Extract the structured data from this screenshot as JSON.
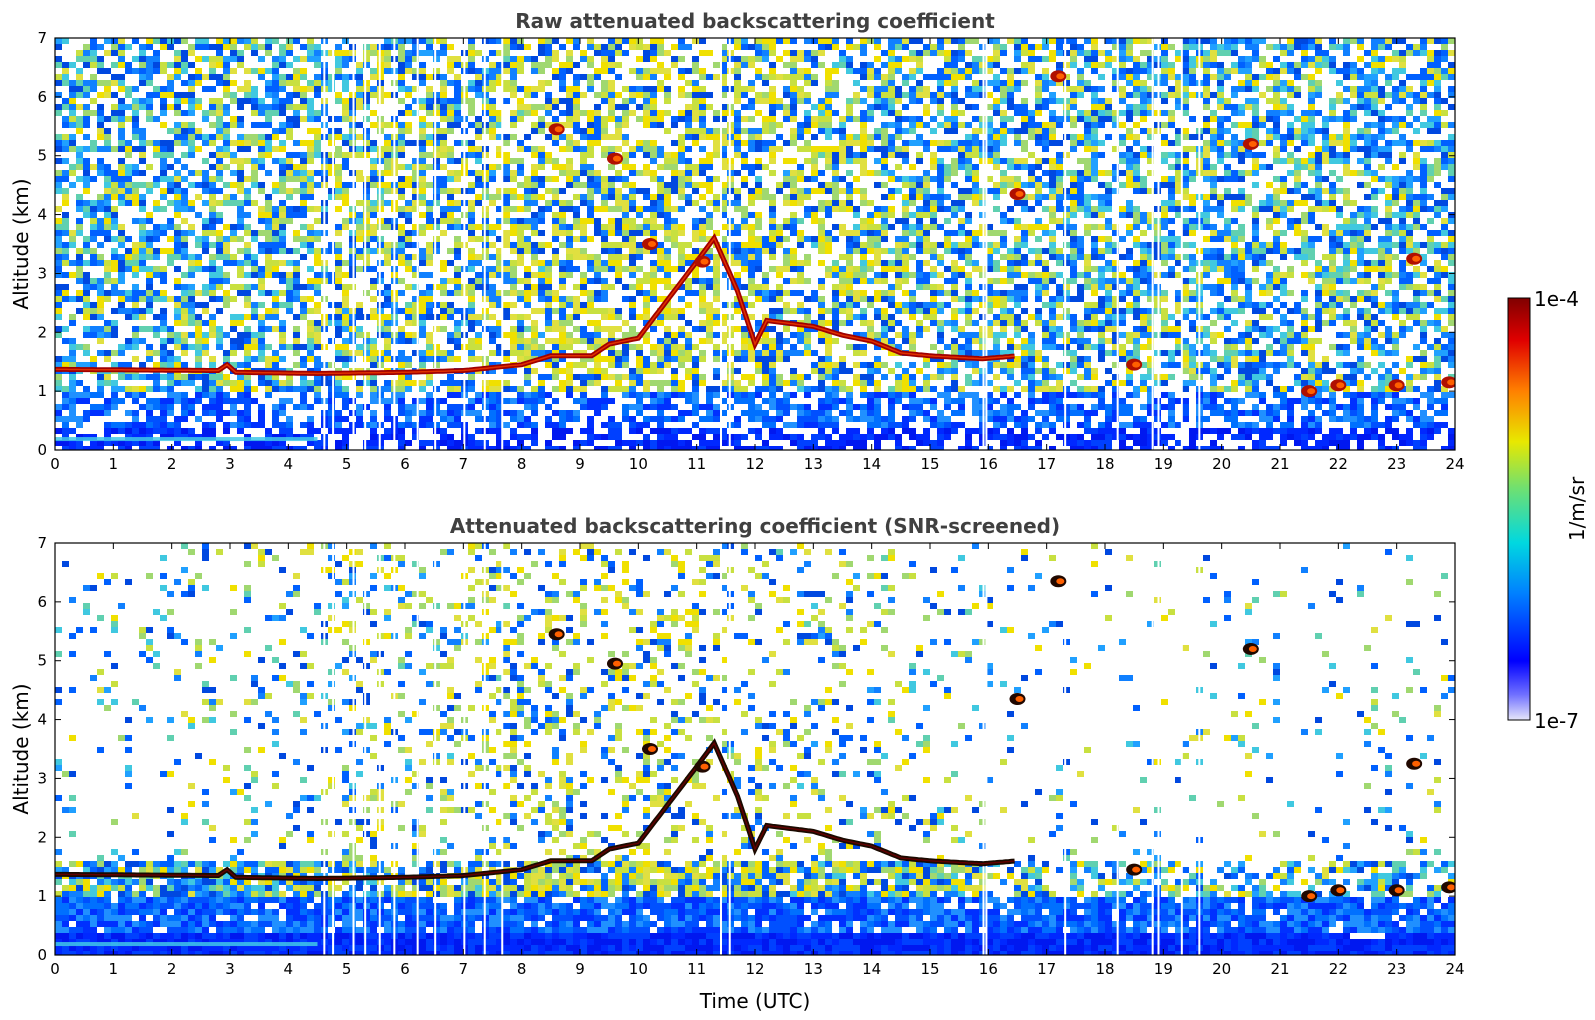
{
  "chart_data": [
    {
      "type": "heatmap",
      "title": "Raw attenuated backscattering coefficient",
      "xlabel": "",
      "ylabel": "Altitude (km)",
      "xlim": [
        0,
        24
      ],
      "ylim": [
        0,
        7
      ],
      "xticks": [
        "0",
        "1",
        "2",
        "3",
        "4",
        "5",
        "6",
        "7",
        "8",
        "9",
        "10",
        "11",
        "12",
        "13",
        "14",
        "15",
        "16",
        "17",
        "18",
        "19",
        "20",
        "21",
        "22",
        "23",
        "24"
      ],
      "yticks": [
        "0",
        "1",
        "2",
        "3",
        "4",
        "5",
        "6",
        "7"
      ],
      "screened": false,
      "layer_height_km": [
        [
          0,
          1.37
        ],
        [
          2.8,
          1.35
        ],
        [
          2.95,
          1.45
        ],
        [
          3.1,
          1.32
        ],
        [
          4.5,
          1.3
        ],
        [
          6,
          1.32
        ],
        [
          7,
          1.35
        ],
        [
          8,
          1.45
        ],
        [
          8.5,
          1.6
        ],
        [
          9.2,
          1.6
        ],
        [
          9.5,
          1.8
        ],
        [
          10,
          1.9
        ],
        [
          11,
          3.2
        ],
        [
          11.3,
          3.6
        ],
        [
          11.7,
          2.7
        ],
        [
          12,
          1.8
        ],
        [
          12.2,
          2.2
        ],
        [
          13,
          2.1
        ],
        [
          13.5,
          1.95
        ],
        [
          14,
          1.85
        ],
        [
          14.5,
          1.65
        ],
        [
          15,
          1.6
        ],
        [
          15.9,
          1.55
        ],
        [
          16.5,
          1.6
        ]
      ],
      "clouds": [
        {
          "t": 8.6,
          "h": 5.45
        },
        {
          "t": 9.6,
          "h": 4.95
        },
        {
          "t": 10.2,
          "h": 3.5
        },
        {
          "t": 11.1,
          "h": 3.2
        },
        {
          "t": 16.5,
          "h": 4.35
        },
        {
          "t": 17.2,
          "h": 6.35
        },
        {
          "t": 20.5,
          "h": 5.2
        },
        {
          "t": 18.5,
          "h": 1.45
        },
        {
          "t": 21.5,
          "h": 1.0
        },
        {
          "t": 22,
          "h": 1.1
        },
        {
          "t": 23.0,
          "h": 1.1
        },
        {
          "t": 23.9,
          "h": 1.15
        },
        {
          "t": 23.3,
          "h": 3.25
        }
      ]
    },
    {
      "type": "heatmap",
      "title": "Attenuated backscattering coefficient (SNR-screened)",
      "xlabel": "Time (UTC)",
      "ylabel": "Altitude (km)",
      "xlim": [
        0,
        24
      ],
      "ylim": [
        0,
        7
      ],
      "xticks": [
        "0",
        "1",
        "2",
        "3",
        "4",
        "5",
        "6",
        "7",
        "8",
        "9",
        "10",
        "11",
        "12",
        "13",
        "14",
        "15",
        "16",
        "17",
        "18",
        "19",
        "20",
        "21",
        "22",
        "23",
        "24"
      ],
      "yticks": [
        "0",
        "1",
        "2",
        "3",
        "4",
        "5",
        "6",
        "7"
      ],
      "screened": true
    }
  ],
  "colorbar": {
    "max_label": "1e-4",
    "min_label": "1e-7",
    "unit_label": "1/m/sr",
    "colors": [
      "#e6e6fa",
      "#0000ff",
      "#00a0ff",
      "#00e0e0",
      "#60e060",
      "#e0e000",
      "#ff8000",
      "#e00000",
      "#800000"
    ]
  }
}
